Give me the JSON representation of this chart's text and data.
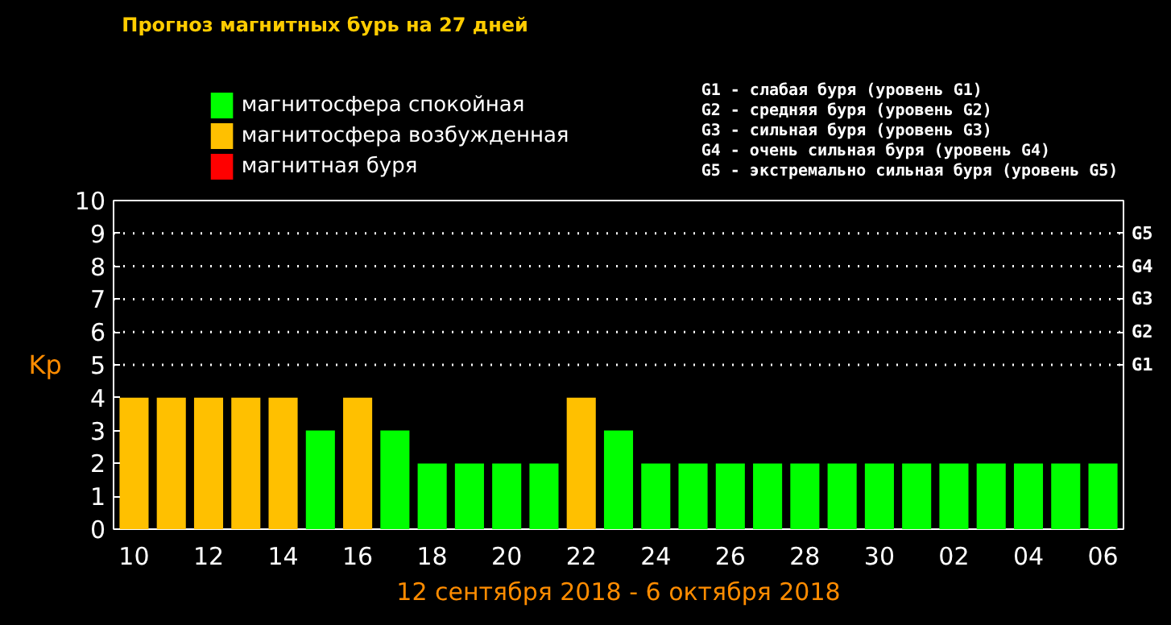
{
  "chart_data": {
    "type": "bar",
    "title": "Прогноз магнитных бурь на 27 дней",
    "xlabel": "12 сентября 2018 - 6 октября 2018",
    "ylabel": "Kp",
    "categories": [
      "10",
      null,
      "12",
      null,
      "14",
      null,
      "16",
      null,
      "18",
      null,
      "20",
      null,
      "22",
      null,
      "24",
      null,
      "26",
      null,
      "28",
      null,
      "30",
      null,
      "02",
      null,
      "04",
      null,
      "06"
    ],
    "series": [
      {
        "name": "магнитосфера спокойная",
        "color": "#00ff00",
        "values": [
          null,
          null,
          null,
          null,
          null,
          3,
          null,
          3,
          2,
          2,
          2,
          2,
          null,
          3,
          2,
          2,
          2,
          2,
          2,
          2,
          2,
          2,
          2,
          2,
          2,
          2,
          2
        ]
      },
      {
        "name": "магнитосфера возбужденная",
        "color": "#ffc000",
        "values": [
          4,
          4,
          4,
          4,
          4,
          null,
          4,
          null,
          null,
          null,
          null,
          null,
          4,
          null,
          null,
          null,
          null,
          null,
          null,
          null,
          null,
          null,
          null,
          null,
          null,
          null,
          null
        ]
      },
      {
        "name": "магнитная буря",
        "color": "#ff0000",
        "values": [
          null,
          null,
          null,
          null,
          null,
          null,
          null,
          null,
          null,
          null,
          null,
          null,
          null,
          null,
          null,
          null,
          null,
          null,
          null,
          null,
          null,
          null,
          null,
          null,
          null,
          null,
          null
        ]
      }
    ],
    "ylim": [
      0,
      10
    ],
    "yticks": [
      0,
      1,
      2,
      3,
      4,
      5,
      6,
      7,
      8,
      9,
      10
    ],
    "ref_lines": [
      {
        "axis": "y",
        "value": 5,
        "label": "G1",
        "color": "#ffffff",
        "line_style": "dotted"
      },
      {
        "axis": "y",
        "value": 6,
        "label": "G2",
        "color": "#ffffff",
        "line_style": "dotted"
      },
      {
        "axis": "y",
        "value": 7,
        "label": "G3",
        "color": "#ffffff",
        "line_style": "dotted"
      },
      {
        "axis": "y",
        "value": 8,
        "label": "G4",
        "color": "#ffffff",
        "line_style": "dotted"
      },
      {
        "axis": "y",
        "value": 9,
        "label": "G5",
        "color": "#ffffff",
        "line_style": "dotted"
      }
    ],
    "annotations": [
      "G1 - слабая буря (уровень G1)",
      "G2 - средняя буря (уровень G2)",
      "G3 - сильная буря (уровень G3)",
      "G4 - очень сильная буря (уровень G4)",
      "G5 - экстремально сильная буря (уровень G5)"
    ],
    "legend": "top left",
    "grid": false
  }
}
